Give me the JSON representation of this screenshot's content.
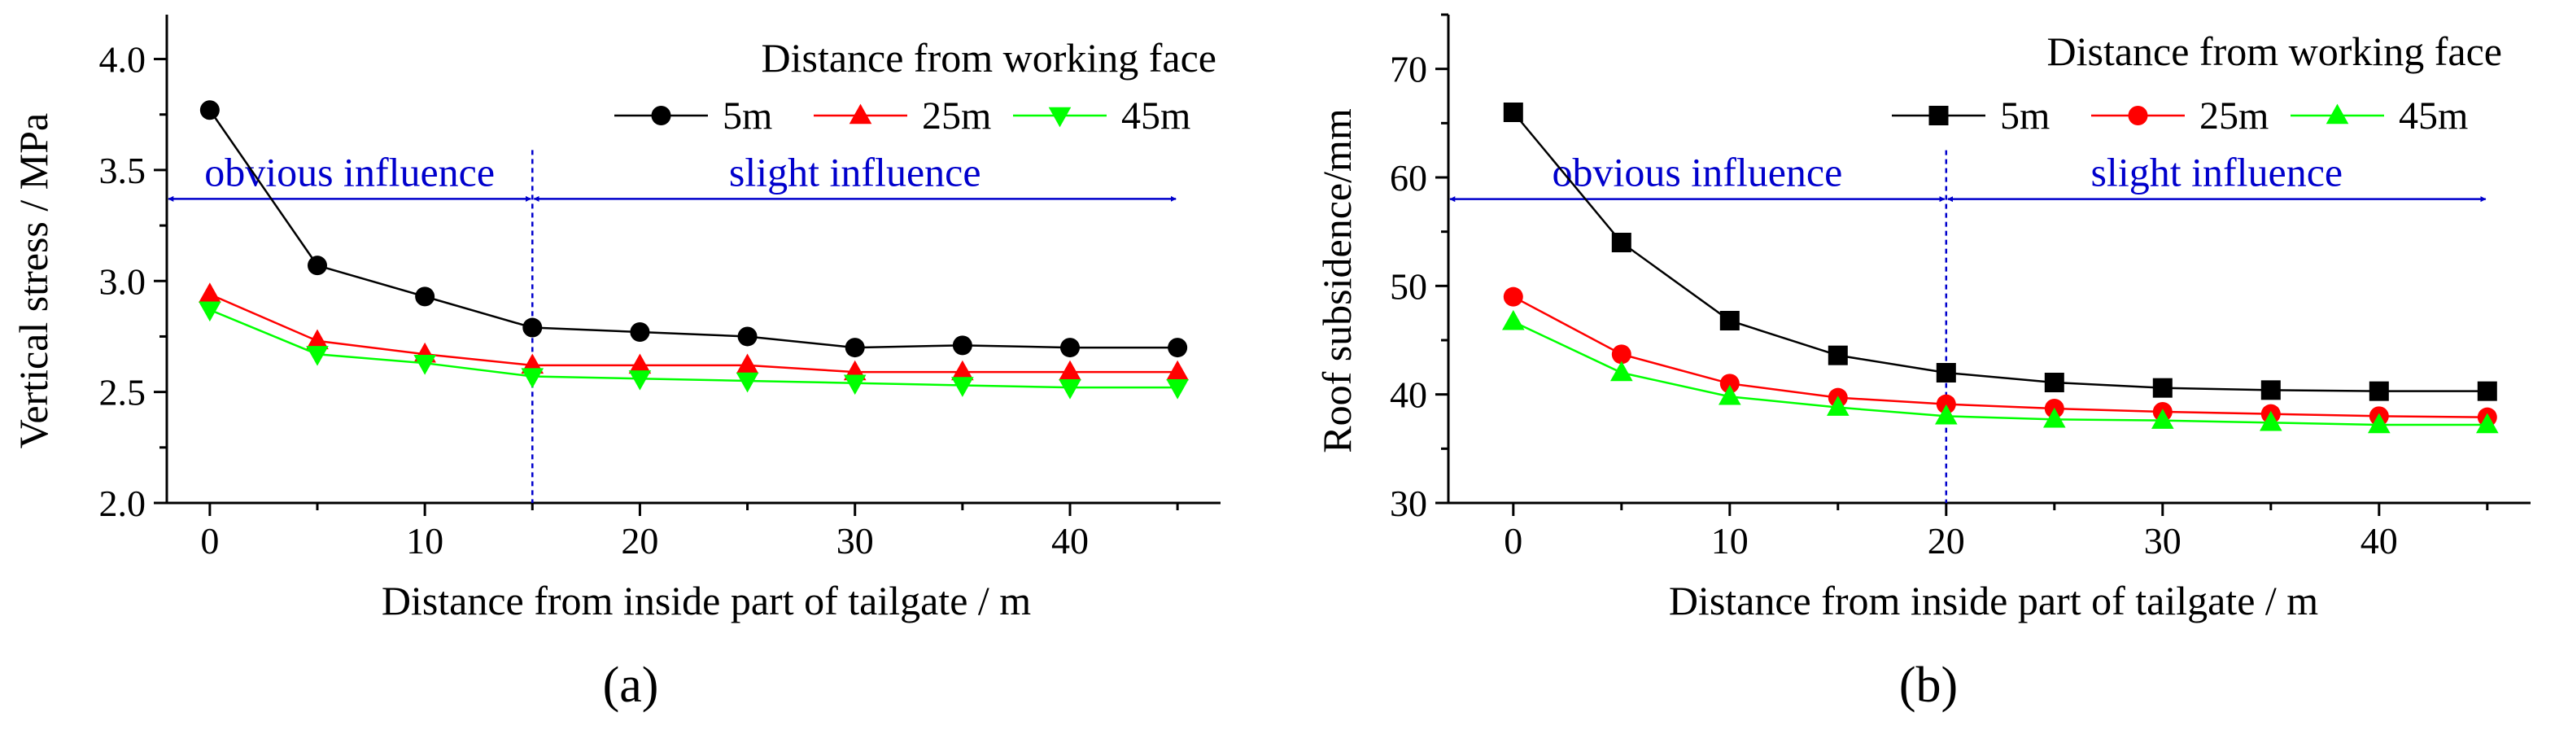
{
  "chart_data": [
    {
      "type": "line",
      "panel_label": "(a)",
      "xlabel": "Distance from inside part of tailgate / m",
      "ylabel": "Vertical stress / MPa",
      "xlim": [
        -2,
        47
      ],
      "ylim": [
        2.0,
        4.2
      ],
      "xticks": [
        0,
        10,
        20,
        30,
        40
      ],
      "yticks": [
        2.0,
        2.5,
        3.0,
        3.5,
        4.0
      ],
      "xtick_labels": [
        "0",
        "10",
        "20",
        "30",
        "40"
      ],
      "ytick_labels": [
        "2.0",
        "2.5",
        "3.0",
        "3.5",
        "4.0"
      ],
      "x": [
        0,
        5,
        10,
        15,
        20,
        25,
        30,
        35,
        40,
        45
      ],
      "legend_title": "Distance from working face",
      "legend_position": "top-right",
      "series": [
        {
          "name": "5m",
          "color": "#000000",
          "marker": "circle",
          "values": [
            3.77,
            3.07,
            2.93,
            2.79,
            2.77,
            2.75,
            2.7,
            2.71,
            2.7,
            2.7
          ]
        },
        {
          "name": "25m",
          "color": "#ff0000",
          "marker": "triangle-up",
          "values": [
            2.94,
            2.73,
            2.67,
            2.62,
            2.62,
            2.62,
            2.59,
            2.59,
            2.59,
            2.59
          ]
        },
        {
          "name": "45m",
          "color": "#00ff00",
          "marker": "triangle-down",
          "values": [
            2.87,
            2.67,
            2.63,
            2.57,
            2.56,
            2.55,
            2.54,
            2.53,
            2.52,
            2.52
          ]
        }
      ],
      "divider_x": 15,
      "arrow_y": 3.37,
      "regions": [
        {
          "label": "obvious influence",
          "from": -2,
          "to": 15
        },
        {
          "label": "slight influence",
          "from": 15,
          "to": 45
        }
      ]
    },
    {
      "type": "line",
      "panel_label": "(b)",
      "xlabel": "Distance from inside part of tailgate / m",
      "ylabel": "Roof subsidence/mm",
      "xlim": [
        -3,
        47
      ],
      "ylim": [
        30,
        75
      ],
      "xticks": [
        0,
        10,
        20,
        30,
        40
      ],
      "yticks": [
        30,
        40,
        50,
        60,
        70
      ],
      "xtick_labels": [
        "0",
        "10",
        "20",
        "30",
        "40"
      ],
      "ytick_labels": [
        "30",
        "40",
        "50",
        "60",
        "70"
      ],
      "x": [
        0,
        5,
        10,
        15,
        20,
        25,
        30,
        35,
        40,
        45
      ],
      "legend_title": "Distance from working face",
      "legend_position": "top-right",
      "series": [
        {
          "name": "5m",
          "color": "#000000",
          "marker": "square",
          "values": [
            66.0,
            54.0,
            46.8,
            43.6,
            42.0,
            41.1,
            40.6,
            40.4,
            40.3,
            40.3
          ]
        },
        {
          "name": "25m",
          "color": "#ff0000",
          "marker": "circle",
          "values": [
            49.0,
            43.7,
            41.0,
            39.7,
            39.1,
            38.7,
            38.4,
            38.2,
            38.0,
            37.9
          ]
        },
        {
          "name": "45m",
          "color": "#00ff00",
          "marker": "triangle-up",
          "values": [
            46.7,
            42.0,
            39.8,
            38.8,
            38.0,
            37.7,
            37.6,
            37.4,
            37.2,
            37.2
          ]
        }
      ],
      "divider_x": 20,
      "arrow_y": 58,
      "regions": [
        {
          "label": "obvious influence",
          "from": -3,
          "to": 20
        },
        {
          "label": "slight influence",
          "from": 20,
          "to": 45
        }
      ]
    }
  ]
}
